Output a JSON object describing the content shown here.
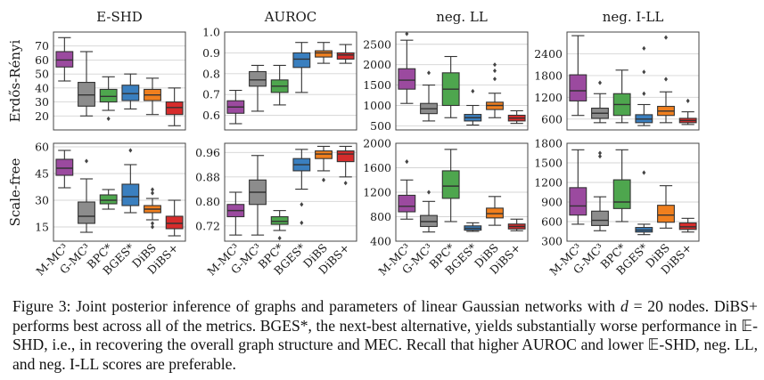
{
  "methods": [
    "M-MC³",
    "G-MC³",
    "BPC*",
    "BGES*",
    "DiBS",
    "DiBS+"
  ],
  "colors": [
    "#9b4a9f",
    "#8c8c8c",
    "#4ea64e",
    "#3a7fbf",
    "#f07f1e",
    "#d62c2c"
  ],
  "row_labels": [
    "Erdős-Rényi",
    "Scale-free"
  ],
  "column_titles": [
    "E-SHD",
    "AUROC",
    "neg. LL",
    "neg. I-LL"
  ],
  "chart_data": [
    {
      "type": "box",
      "metric": "E-SHD",
      "graph": "Erdős-Rényi",
      "ylim": [
        10,
        80
      ],
      "ticks": [
        20,
        30,
        40,
        50,
        60,
        70
      ],
      "tick_labels": [
        "20",
        "30",
        "40",
        "50",
        "60",
        "70"
      ],
      "boxes": [
        {
          "q1": 55,
          "med": 60,
          "q3": 66,
          "lo": 45,
          "hi": 76,
          "fl": []
        },
        {
          "q1": 27,
          "med": 35,
          "q3": 44,
          "lo": 20,
          "hi": 66,
          "fl": []
        },
        {
          "q1": 30,
          "med": 34,
          "q3": 39,
          "lo": 24,
          "hi": 48,
          "fl": [
            18
          ]
        },
        {
          "q1": 31,
          "med": 36,
          "q3": 42,
          "lo": 25,
          "hi": 50,
          "fl": []
        },
        {
          "q1": 31,
          "med": 35,
          "q3": 39,
          "lo": 21,
          "hi": 47,
          "fl": []
        },
        {
          "q1": 21,
          "med": 26,
          "q3": 30,
          "lo": 13,
          "hi": 40,
          "fl": []
        }
      ]
    },
    {
      "type": "box",
      "metric": "AUROC",
      "graph": "Erdős-Rényi",
      "ylim": [
        0.53,
        1.0
      ],
      "ticks": [
        0.6,
        0.7,
        0.8,
        0.9,
        1.0
      ],
      "tick_labels": [
        "0.6",
        "0.7",
        "0.8",
        "0.9",
        "1.0"
      ],
      "boxes": [
        {
          "q1": 0.61,
          "med": 0.64,
          "q3": 0.67,
          "lo": 0.56,
          "hi": 0.72,
          "fl": []
        },
        {
          "q1": 0.74,
          "med": 0.77,
          "q3": 0.81,
          "lo": 0.62,
          "hi": 0.84,
          "fl": []
        },
        {
          "q1": 0.71,
          "med": 0.74,
          "q3": 0.77,
          "lo": 0.65,
          "hi": 0.84,
          "fl": []
        },
        {
          "q1": 0.83,
          "med": 0.87,
          "q3": 0.9,
          "lo": 0.71,
          "hi": 0.95,
          "fl": []
        },
        {
          "q1": 0.88,
          "med": 0.9,
          "q3": 0.91,
          "lo": 0.85,
          "hi": 0.95,
          "fl": []
        },
        {
          "q1": 0.87,
          "med": 0.89,
          "q3": 0.9,
          "lo": 0.85,
          "hi": 0.94,
          "fl": []
        }
      ]
    },
    {
      "type": "box",
      "metric": "neg. LL",
      "graph": "Erdős-Rényi",
      "ylim": [
        400,
        2800
      ],
      "ticks": [
        500,
        1000,
        1500,
        2000,
        2500
      ],
      "tick_labels": [
        "500",
        "1000",
        "1500",
        "2000",
        "2500"
      ],
      "boxes": [
        {
          "q1": 1400,
          "med": 1620,
          "q3": 1900,
          "lo": 1050,
          "hi": 2600,
          "fl": [
            2800
          ]
        },
        {
          "q1": 800,
          "med": 920,
          "q3": 1050,
          "lo": 620,
          "hi": 1500,
          "fl": [
            1800
          ]
        },
        {
          "q1": 1000,
          "med": 1400,
          "q3": 1800,
          "lo": 700,
          "hi": 2200,
          "fl": []
        },
        {
          "q1": 620,
          "med": 700,
          "q3": 780,
          "lo": 520,
          "hi": 1000,
          "fl": [
            1350
          ]
        },
        {
          "q1": 900,
          "med": 1000,
          "q3": 1080,
          "lo": 700,
          "hi": 1300,
          "fl": [
            1650,
            1850,
            2000
          ]
        },
        {
          "q1": 620,
          "med": 690,
          "q3": 760,
          "lo": 560,
          "hi": 870,
          "fl": []
        }
      ]
    },
    {
      "type": "box",
      "metric": "neg. I-LL",
      "graph": "Erdős-Rényi",
      "ylim": [
        300,
        3000
      ],
      "ticks": [
        600,
        1200,
        1800,
        2400
      ],
      "tick_labels": [
        "600",
        "1200",
        "1800",
        "2400"
      ],
      "boxes": [
        {
          "q1": 1100,
          "med": 1380,
          "q3": 1820,
          "lo": 700,
          "hi": 2900,
          "fl": []
        },
        {
          "q1": 620,
          "med": 760,
          "q3": 900,
          "lo": 500,
          "hi": 1300,
          "fl": [
            1600
          ]
        },
        {
          "q1": 700,
          "med": 1000,
          "q3": 1300,
          "lo": 500,
          "hi": 1950,
          "fl": []
        },
        {
          "q1": 500,
          "med": 600,
          "q3": 720,
          "lo": 420,
          "hi": 1000,
          "fl": [
            1300,
            1900,
            2550
          ]
        },
        {
          "q1": 700,
          "med": 820,
          "q3": 950,
          "lo": 500,
          "hi": 1350,
          "fl": [
            1700,
            2850
          ]
        },
        {
          "q1": 500,
          "med": 560,
          "q3": 620,
          "lo": 450,
          "hi": 800,
          "fl": [
            1100
          ]
        }
      ]
    },
    {
      "type": "box",
      "metric": "E-SHD",
      "graph": "Scale-free",
      "ylim": [
        7,
        62
      ],
      "ticks": [
        15,
        30,
        45,
        60
      ],
      "tick_labels": [
        "15",
        "30",
        "45",
        "60"
      ],
      "boxes": [
        {
          "q1": 44,
          "med": 48,
          "q3": 53,
          "lo": 37,
          "hi": 58,
          "fl": []
        },
        {
          "q1": 17,
          "med": 21,
          "q3": 29,
          "lo": 12,
          "hi": 42,
          "fl": [
            52
          ]
        },
        {
          "q1": 28,
          "med": 30,
          "q3": 33,
          "lo": 25,
          "hi": 36,
          "fl": []
        },
        {
          "q1": 27,
          "med": 32,
          "q3": 39,
          "lo": 23,
          "hi": 50,
          "fl": [
            58
          ]
        },
        {
          "q1": 23,
          "med": 25,
          "q3": 27,
          "lo": 19,
          "hi": 31,
          "fl": [
            15,
            17,
            34,
            36
          ]
        },
        {
          "q1": 14,
          "med": 17,
          "q3": 21,
          "lo": 10,
          "hi": 30,
          "fl": []
        }
      ]
    },
    {
      "type": "box",
      "metric": "AUROC",
      "graph": "Scale-free",
      "ylim": [
        0.67,
        0.99
      ],
      "ticks": [
        0.72,
        0.8,
        0.88,
        0.96
      ],
      "tick_labels": [
        "0.72",
        "0.80",
        "0.88",
        "0.96"
      ],
      "boxes": [
        {
          "q1": 0.75,
          "med": 0.77,
          "q3": 0.79,
          "lo": 0.69,
          "hi": 0.83,
          "fl": []
        },
        {
          "q1": 0.79,
          "med": 0.83,
          "q3": 0.87,
          "lo": 0.69,
          "hi": 0.95,
          "fl": []
        },
        {
          "q1": 0.725,
          "med": 0.735,
          "q3": 0.75,
          "lo": 0.705,
          "hi": 0.77,
          "fl": [
            0.68
          ]
        },
        {
          "q1": 0.9,
          "med": 0.92,
          "q3": 0.94,
          "lo": 0.84,
          "hi": 0.97,
          "fl": [
            0.73,
            0.79
          ]
        },
        {
          "q1": 0.94,
          "med": 0.955,
          "q3": 0.965,
          "lo": 0.9,
          "hi": 0.98,
          "fl": [
            0.87
          ]
        },
        {
          "q1": 0.93,
          "med": 0.955,
          "q3": 0.965,
          "lo": 0.88,
          "hi": 0.98,
          "fl": [
            0.86
          ]
        }
      ]
    },
    {
      "type": "box",
      "metric": "neg. LL",
      "graph": "Scale-free",
      "ylim": [
        400,
        2000
      ],
      "ticks": [
        400,
        800,
        1200,
        1600,
        2000
      ],
      "tick_labels": [
        "400",
        "800",
        "1200",
        "1600",
        "2000"
      ],
      "boxes": [
        {
          "q1": 880,
          "med": 970,
          "q3": 1150,
          "lo": 760,
          "hi": 1400,
          "fl": [
            1700
          ]
        },
        {
          "q1": 640,
          "med": 720,
          "q3": 820,
          "lo": 550,
          "hi": 1050,
          "fl": [
            1200
          ]
        },
        {
          "q1": 1100,
          "med": 1300,
          "q3": 1550,
          "lo": 720,
          "hi": 1900,
          "fl": []
        },
        {
          "q1": 580,
          "med": 610,
          "q3": 650,
          "lo": 560,
          "hi": 700,
          "fl": []
        },
        {
          "q1": 780,
          "med": 850,
          "q3": 940,
          "lo": 660,
          "hi": 1130,
          "fl": []
        },
        {
          "q1": 600,
          "med": 640,
          "q3": 680,
          "lo": 570,
          "hi": 760,
          "fl": []
        }
      ]
    },
    {
      "type": "box",
      "metric": "neg. I-LL",
      "graph": "Scale-free",
      "ylim": [
        300,
        1800
      ],
      "ticks": [
        300,
        600,
        900,
        1200,
        1500,
        1800
      ],
      "tick_labels": [
        "300",
        "600",
        "900",
        "1200",
        "1500",
        "1800"
      ],
      "boxes": [
        {
          "q1": 700,
          "med": 840,
          "q3": 1120,
          "lo": 560,
          "hi": 1700,
          "fl": []
        },
        {
          "q1": 540,
          "med": 620,
          "q3": 760,
          "lo": 460,
          "hi": 980,
          "fl": [
            1600,
            1650
          ]
        },
        {
          "q1": 800,
          "med": 900,
          "q3": 1240,
          "lo": 600,
          "hi": 1700,
          "fl": []
        },
        {
          "q1": 440,
          "med": 470,
          "q3": 510,
          "lo": 400,
          "hi": 560,
          "fl": [
            1350
          ]
        },
        {
          "q1": 590,
          "med": 700,
          "q3": 850,
          "lo": 500,
          "hi": 1150,
          "fl": []
        },
        {
          "q1": 480,
          "med": 520,
          "q3": 580,
          "lo": 440,
          "hi": 650,
          "fl": []
        }
      ]
    }
  ],
  "caption": {
    "line1_pre": "Figure 3: Joint posterior inference of graphs and parameters of linear Gaussian networks with ",
    "line1_var": "d",
    "line1_post": " = 20",
    "line2": "nodes.  DiBS+ performs best across all of the metrics.  BGES*, the next-best alternative, yields",
    "line3": "substantially worse performance in 𝔼-SHD, i.e., in recovering the overall graph structure and MEC.",
    "line4": "Recall that higher AUROC and lower 𝔼-SHD, neg. LL, and neg. I-LL scores are preferable."
  }
}
